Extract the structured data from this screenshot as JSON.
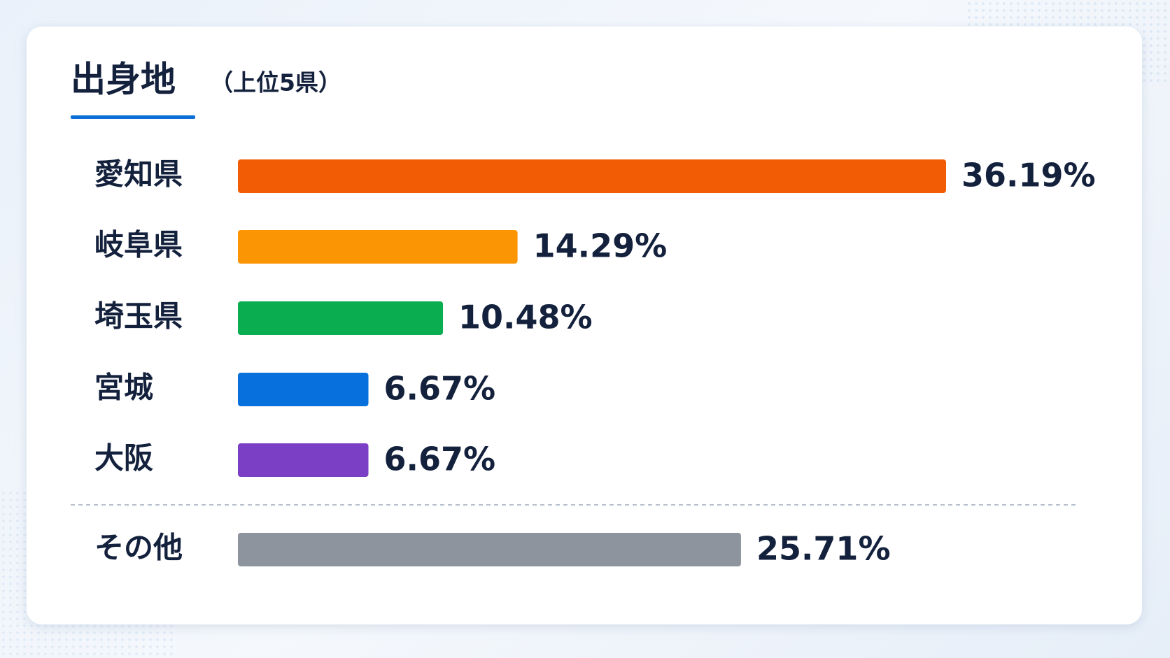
{
  "chart_data": {
    "type": "hbar",
    "title": "出身地",
    "subtitle": "（上位5県）",
    "categories": [
      "愛知県",
      "岐阜県",
      "埼玉県",
      "宮城",
      "大阪",
      "その他"
    ],
    "values": [
      36.19,
      14.29,
      10.48,
      6.67,
      6.67,
      25.71
    ],
    "value_labels": [
      "36.19%",
      "14.29%",
      "10.48%",
      "6.67%",
      "6.67%",
      "25.71%"
    ],
    "colors": [
      "#f25c05",
      "#fb9504",
      "#0aad4f",
      "#0870dc",
      "#7a3fc4",
      "#8e949e"
    ]
  }
}
